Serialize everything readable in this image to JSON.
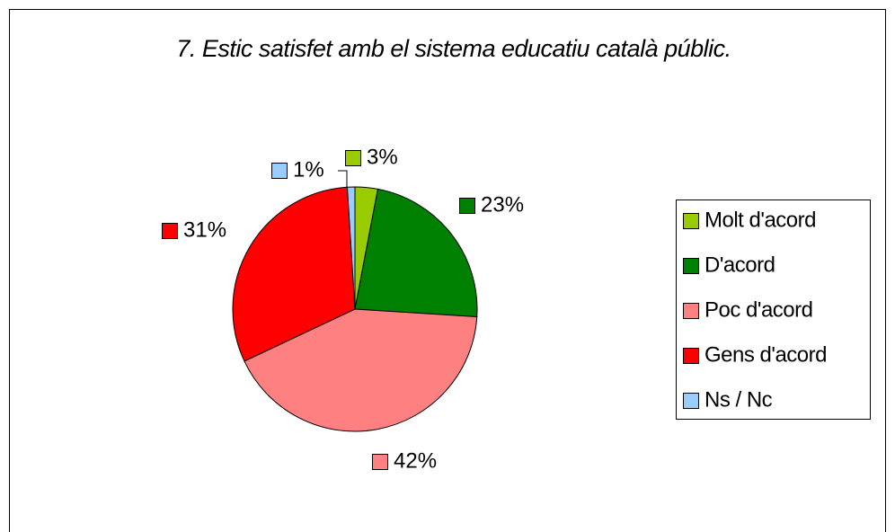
{
  "chart_data": {
    "type": "pie",
    "title": "7. Estic satisfet amb el sistema educatiu català públic.",
    "categories": [
      "Molt d'acord",
      "D'acord",
      "Poc d'acord",
      "Gens d'acord",
      "Ns / Nc"
    ],
    "values": [
      3,
      23,
      42,
      31,
      1
    ],
    "value_labels": [
      "3%",
      "23%",
      "42%",
      "31%",
      "1%"
    ],
    "colors": [
      "#99cc00",
      "#008000",
      "#ff8080",
      "#ff0000",
      "#99ccff"
    ],
    "legend": "right"
  }
}
